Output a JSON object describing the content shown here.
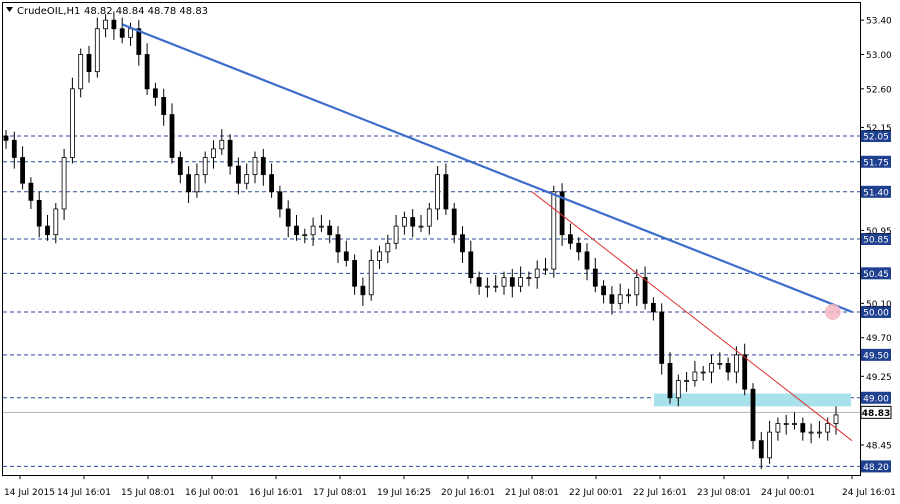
{
  "header": {
    "symbol": "CrudeOIL,H1",
    "ohlc": "48.82 48.84 48.78 48.83"
  },
  "chart_data": {
    "type": "candlestick",
    "symbol": "CrudeOIL",
    "timeframe": "H1",
    "ylim": [
      48.1,
      53.6
    ],
    "price_ticks": [
      "53.40",
      "53.00",
      "52.60",
      "52.15",
      "51.75",
      "51.40",
      "50.95",
      "50.45",
      "50.10",
      "49.70",
      "49.25",
      "48.85",
      "48.45",
      "48.20"
    ],
    "time_ticks": [
      "14 Jul 2015",
      "14 Jul 16:01",
      "15 Jul 08:01",
      "16 Jul 00:01",
      "16 Jul 16:01",
      "17 Jul 08:01",
      "19 Jul 16:25",
      "20 Jul 16:01",
      "21 Jul 08:01",
      "22 Jul 00:01",
      "22 Jul 16:01",
      "23 Jul 08:01",
      "24 Jul 00:01",
      "24 Jul 16:01"
    ],
    "horizontal_levels": [
      "52.05",
      "51.75",
      "51.40",
      "50.85",
      "50.45",
      "50.00",
      "49.50",
      "49.00",
      "48.20"
    ],
    "current_price": "48.83",
    "support_zone": [
      48.9,
      49.05
    ],
    "trendlines": [
      {
        "name": "blue-downtrend",
        "color": "#3c6ccc",
        "from": {
          "time": "15 Jul 00:01",
          "price": 53.35
        },
        "to": {
          "time": "24 Jul 16:01",
          "price": 50.0
        }
      },
      {
        "name": "red-downtrend",
        "color": "#e03030",
        "from": {
          "time": "21 Jul 08:01",
          "price": 51.4
        },
        "to": {
          "time": "24 Jul 16:01",
          "price": 48.5
        }
      }
    ],
    "closes": [
      52.0,
      51.8,
      51.5,
      51.3,
      51.0,
      50.9,
      51.2,
      51.8,
      52.6,
      53.0,
      52.8,
      53.3,
      53.4,
      53.3,
      53.2,
      53.3,
      53.0,
      52.6,
      52.5,
      52.3,
      51.8,
      51.6,
      51.4,
      51.6,
      51.8,
      51.9,
      52.0,
      51.7,
      51.5,
      51.6,
      51.8,
      51.6,
      51.4,
      51.2,
      51.0,
      50.9,
      50.9,
      51.0,
      51.0,
      50.9,
      50.7,
      50.6,
      50.3,
      50.2,
      50.6,
      50.7,
      50.8,
      51.0,
      51.1,
      51.0,
      51.0,
      51.2,
      51.6,
      51.2,
      50.9,
      50.7,
      50.4,
      50.3,
      50.3,
      50.3,
      50.4,
      50.3,
      50.4,
      50.4,
      50.5,
      50.5,
      51.4,
      50.9,
      50.8,
      50.7,
      50.5,
      50.3,
      50.2,
      50.1,
      50.2,
      50.2,
      50.4,
      50.1,
      50.0,
      49.4,
      49.0,
      49.2,
      49.2,
      49.3,
      49.3,
      49.4,
      49.4,
      49.3,
      49.5,
      49.1,
      48.5,
      48.3,
      48.6,
      48.7,
      48.7,
      48.7,
      48.6,
      48.6,
      48.6,
      48.7,
      48.8
    ]
  }
}
